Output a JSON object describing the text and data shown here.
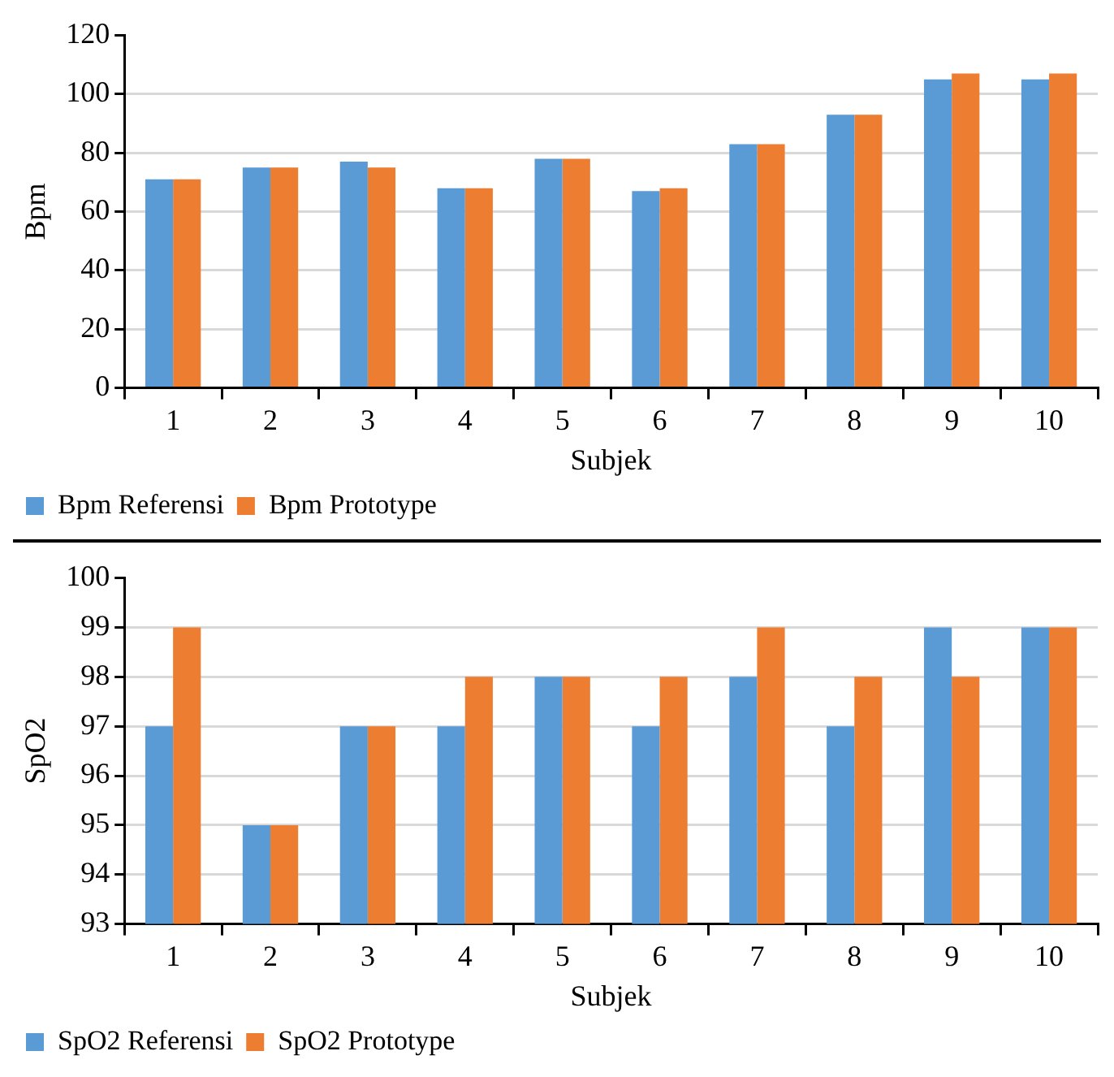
{
  "chart_data": [
    {
      "type": "bar",
      "ylabel": "Bpm",
      "xlabel": "Subjek",
      "categories": [
        "1",
        "2",
        "3",
        "4",
        "5",
        "6",
        "7",
        "8",
        "9",
        "10"
      ],
      "series": [
        {
          "name": "Bpm Referensi",
          "color": "#5b9bd5",
          "values": [
            71,
            75,
            77,
            68,
            78,
            67,
            83,
            93,
            105,
            105
          ]
        },
        {
          "name": "Bpm Prototype",
          "color": "#ed7d31",
          "values": [
            71,
            75,
            75,
            68,
            78,
            68,
            83,
            93,
            107,
            107
          ]
        }
      ],
      "ylim": [
        0,
        120
      ],
      "yticks": [
        0,
        20,
        40,
        60,
        80,
        100,
        120
      ],
      "grid": "y",
      "legend": "bottom left"
    },
    {
      "type": "bar",
      "ylabel": "SpO2",
      "xlabel": "Subjek",
      "categories": [
        "1",
        "2",
        "3",
        "4",
        "5",
        "6",
        "7",
        "8",
        "9",
        "10"
      ],
      "series": [
        {
          "name": "SpO2 Referensi",
          "color": "#5b9bd5",
          "values": [
            97,
            95,
            97,
            97,
            98,
            97,
            98,
            97,
            99,
            99
          ]
        },
        {
          "name": "SpO2 Prototype",
          "color": "#ed7d31",
          "values": [
            99,
            95,
            97,
            98,
            98,
            98,
            99,
            98,
            98,
            99
          ]
        }
      ],
      "ylim": [
        93,
        100
      ],
      "yticks": [
        93,
        94,
        95,
        96,
        97,
        98,
        99,
        100
      ],
      "grid": "y",
      "legend": "bottom left"
    }
  ]
}
